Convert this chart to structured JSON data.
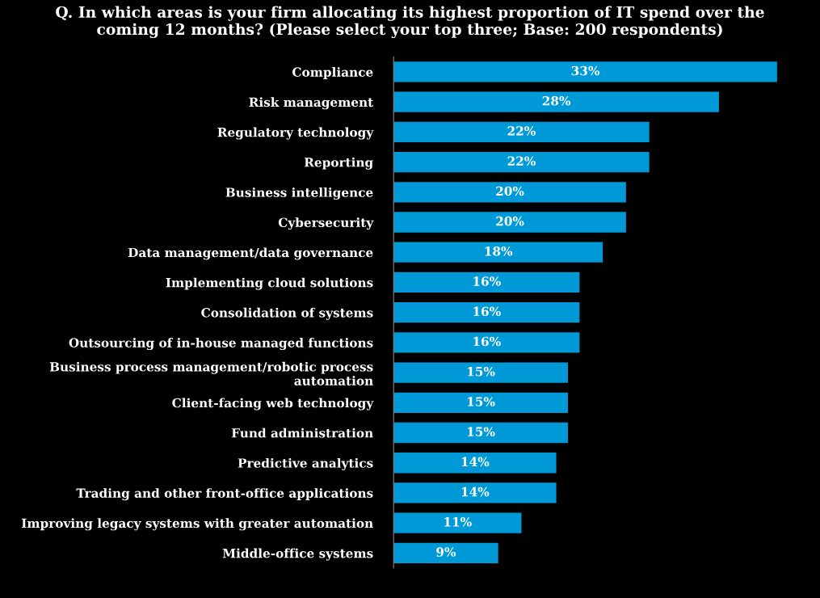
{
  "chart_data": {
    "type": "bar",
    "orientation": "horizontal",
    "title": "Q. In which areas is your firm allocating its highest proportion of IT spend over the\ncoming 12 months? (Please select your top three; Base: 200 respondents)",
    "categories": [
      "Compliance",
      "Risk management",
      "Regulatory technology",
      "Reporting",
      "Business intelligence",
      "Cybersecurity",
      "Data management/data governance",
      "Implementing cloud solutions",
      "Consolidation of systems",
      "Outsourcing of in-house managed functions",
      "Business process management/robotic process\nautomation",
      "Client-facing web technology",
      "Fund administration",
      "Predictive analytics",
      "Trading and other front-office applications",
      "Improving legacy systems with greater automation",
      "Middle-office systems"
    ],
    "values": [
      33,
      28,
      22,
      22,
      20,
      20,
      18,
      16,
      16,
      16,
      15,
      15,
      15,
      14,
      14,
      11,
      9
    ],
    "value_labels": [
      "33%",
      "28%",
      "22%",
      "22%",
      "20%",
      "20%",
      "18%",
      "16%",
      "16%",
      "16%",
      "15%",
      "15%",
      "15%",
      "14%",
      "14%",
      "11%",
      "9%"
    ],
    "color": "#0099d8",
    "tick_labels": "y",
    "grid": false,
    "legend": false
  }
}
